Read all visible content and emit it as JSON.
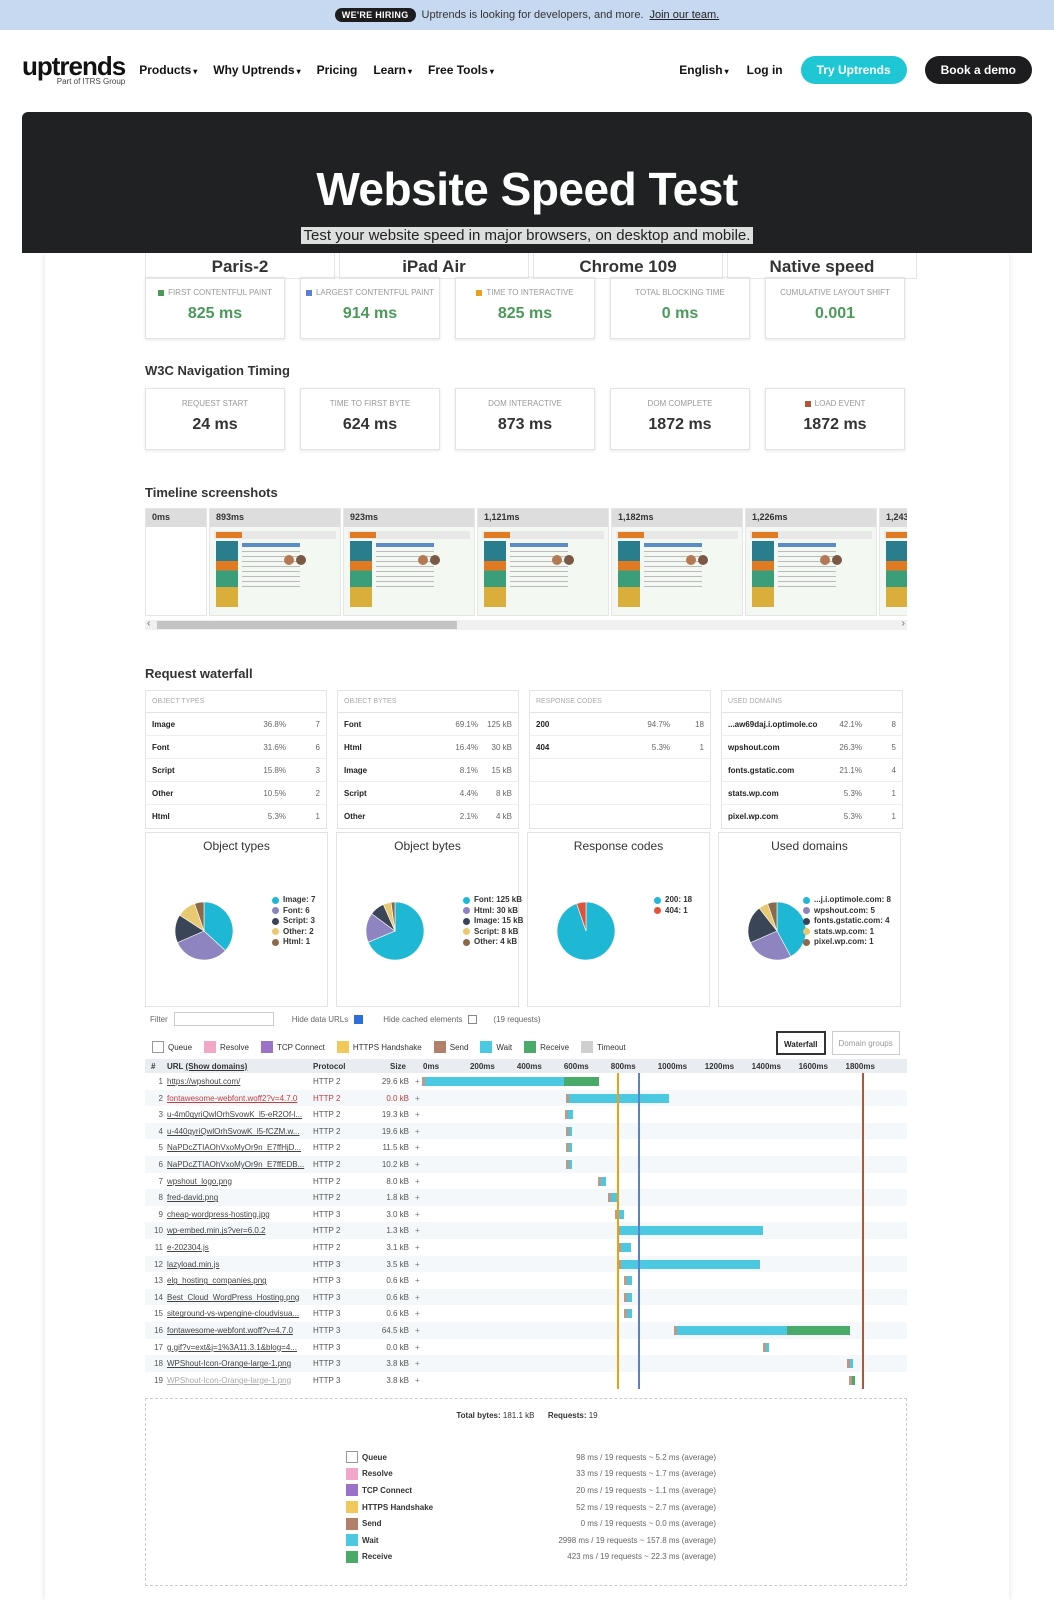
{
  "banner": {
    "badge": "WE'RE HIRING",
    "text": "Uptrends is looking for developers, and more.",
    "link": "Join our team."
  },
  "nav": {
    "logo": "uptrends",
    "logo_sub": "Part of ITRS Group",
    "items": [
      "Products",
      "Why Uptrends",
      "Pricing",
      "Learn",
      "Free Tools"
    ],
    "language": "English",
    "login": "Log in",
    "try": "Try Uptrends",
    "demo": "Book a demo"
  },
  "hero": {
    "title": "Website Speed Test",
    "subtitle": "Test your website speed in major browsers, on desktop and mobile."
  },
  "params": [
    "Paris-2",
    "iPad Air",
    "Chrome 109",
    "Native speed"
  ],
  "core_metrics": [
    {
      "label": "FIRST CONTENTFUL PAINT",
      "value": "825 ms",
      "color": "#4b9a5a"
    },
    {
      "label": "LARGEST CONTENTFUL PAINT",
      "value": "914 ms",
      "color": "#5b7fd6"
    },
    {
      "label": "TIME TO INTERACTIVE",
      "value": "825 ms",
      "color": "#e8a21a"
    },
    {
      "label": "TOTAL BLOCKING TIME",
      "value": "0 ms",
      "color": ""
    },
    {
      "label": "CUMULATIVE LAYOUT SHIFT",
      "value": "0.001",
      "color": ""
    }
  ],
  "w3c": {
    "title": "W3C Navigation Timing",
    "metrics": [
      {
        "label": "REQUEST START",
        "value": "24 ms"
      },
      {
        "label": "TIME TO FIRST BYTE",
        "value": "624 ms"
      },
      {
        "label": "DOM INTERACTIVE",
        "value": "873 ms"
      },
      {
        "label": "DOM COMPLETE",
        "value": "1872 ms"
      },
      {
        "label": "LOAD EVENT",
        "value": "1872 ms",
        "color": "#b3553a"
      }
    ]
  },
  "timeline": {
    "title": "Timeline screenshots",
    "frames": [
      "0ms",
      "893ms",
      "923ms",
      "1,121ms",
      "1,182ms",
      "1,226ms",
      "1,243"
    ]
  },
  "waterfall_title": "Request waterfall",
  "stat_tables": [
    {
      "header": "OBJECT TYPES",
      "rows": [
        [
          "Image",
          "36.8%",
          "7"
        ],
        [
          "Font",
          "31.6%",
          "6"
        ],
        [
          "Script",
          "15.8%",
          "3"
        ],
        [
          "Other",
          "10.5%",
          "2"
        ],
        [
          "Html",
          "5.3%",
          "1"
        ]
      ]
    },
    {
      "header": "OBJECT BYTES",
      "rows": [
        [
          "Font",
          "69.1%",
          "125 kB"
        ],
        [
          "Html",
          "16.4%",
          "30 kB"
        ],
        [
          "Image",
          "8.1%",
          "15 kB"
        ],
        [
          "Script",
          "4.4%",
          "8 kB"
        ],
        [
          "Other",
          "2.1%",
          "4 kB"
        ]
      ]
    },
    {
      "header": "RESPONSE CODES",
      "rows": [
        [
          "200",
          "94.7%",
          "18"
        ],
        [
          "404",
          "5.3%",
          "1"
        ],
        [
          "",
          "",
          ""
        ],
        [
          "",
          "",
          ""
        ],
        [
          "",
          "",
          ""
        ]
      ]
    },
    {
      "header": "USED DOMAINS",
      "rows": [
        [
          "...aw69daj.i.optimole.com",
          "42.1%",
          "8"
        ],
        [
          "wpshout.com",
          "26.3%",
          "5"
        ],
        [
          "fonts.gstatic.com",
          "21.1%",
          "4"
        ],
        [
          "stats.wp.com",
          "5.3%",
          "1"
        ],
        [
          "pixel.wp.com",
          "5.3%",
          "1"
        ]
      ]
    }
  ],
  "pies": [
    {
      "title": "Object types",
      "slices": [
        7,
        6,
        3,
        2,
        1
      ],
      "colors": [
        "#1fb8d4",
        "#8d84c0",
        "#3a4658",
        "#e8c870",
        "#8a6a4a"
      ],
      "legend": [
        "Image: 7",
        "Font: 6",
        "Script: 3",
        "Other: 2",
        "Html: 1"
      ]
    },
    {
      "title": "Object bytes",
      "slices": [
        125,
        30,
        15,
        8,
        4
      ],
      "colors": [
        "#1fb8d4",
        "#8d84c0",
        "#3a4658",
        "#e8c870",
        "#8a6a4a"
      ],
      "legend": [
        "Font: 125 kB",
        "Html: 30 kB",
        "Image: 15 kB",
        "Script: 8 kB",
        "Other: 4 kB"
      ]
    },
    {
      "title": "Response codes",
      "slices": [
        18,
        1
      ],
      "colors": [
        "#1fb8d4",
        "#e0533b"
      ],
      "legend": [
        "200: 18",
        "404: 1"
      ]
    },
    {
      "title": "Used domains",
      "slices": [
        8,
        5,
        4,
        1,
        1
      ],
      "colors": [
        "#1fb8d4",
        "#8d84c0",
        "#3a4658",
        "#e8c870",
        "#8a6a4a"
      ],
      "legend": [
        "...j.i.optimole.com: 8",
        "wpshout.com: 5",
        "fonts.gstatic.com: 4",
        "stats.wp.com: 1",
        "pixel.wp.com: 1"
      ]
    }
  ],
  "controls": {
    "filter": "Filter",
    "hide_data": "Hide data URLs",
    "hide_cached": "Hide cached elements",
    "requests": "(19 requests)",
    "waterfall": "Waterfall",
    "domain_groups": "Domain groups"
  },
  "phases": [
    {
      "name": "Queue",
      "color": "#ffffff"
    },
    {
      "name": "Resolve",
      "color": "#f2a6c8"
    },
    {
      "name": "TCP Connect",
      "color": "#9b72c9"
    },
    {
      "name": "HTTPS Handshake",
      "color": "#f0c95a"
    },
    {
      "name": "Send",
      "color": "#b0806a"
    },
    {
      "name": "Wait",
      "color": "#4cc8e0"
    },
    {
      "name": "Receive",
      "color": "#4aaa6a"
    },
    {
      "name": "Timeout",
      "color": "#cfcfcf"
    }
  ],
  "table_head": {
    "num": "#",
    "url": "URL",
    "show_domains": "(Show domains)",
    "protocol": "Protocol",
    "size": "Size",
    "ticks": [
      "0ms",
      "200ms",
      "400ms",
      "600ms",
      "800ms",
      "1000ms",
      "1200ms",
      "1400ms",
      "1600ms",
      "1800ms"
    ]
  },
  "requests": [
    {
      "n": "1",
      "url": "https://wpshout.com/",
      "proto": "HTTP 2",
      "size": "29.6 kB",
      "err": false,
      "start": 10,
      "wait": 590,
      "recv": 150
    },
    {
      "n": "2",
      "url": "fontawesome-webfont.woff2?v=4.7.0",
      "proto": "HTTP 2",
      "size": "0.0 kB",
      "err": true,
      "start": 620,
      "wait": 430,
      "recv": 0
    },
    {
      "n": "3",
      "url": "u-4m0qyriQwlOrhSvowK_l5-eR2Of-l...",
      "proto": "HTTP 2",
      "size": "19.3 kB",
      "err": false,
      "start": 618,
      "wait": 20,
      "recv": 0
    },
    {
      "n": "4",
      "url": "u-440qyriQwlOrhSvowK_l5-fCZM.w...",
      "proto": "HTTP 2",
      "size": "19.6 kB",
      "err": false,
      "start": 620,
      "wait": 15,
      "recv": 0
    },
    {
      "n": "5",
      "url": "NaPDcZTIAOhVxoMyOr9n_E7ffHjD...",
      "proto": "HTTP 2",
      "size": "11.5 kB",
      "err": false,
      "start": 620,
      "wait": 15,
      "recv": 0
    },
    {
      "n": "6",
      "url": "NaPDcZTIAOhVxoMyOr9n_E7ffEDB...",
      "proto": "HTTP 2",
      "size": "10.2 kB",
      "err": false,
      "start": 620,
      "wait": 15,
      "recv": 0
    },
    {
      "n": "7",
      "url": "wpshout_logo.png",
      "proto": "HTTP 2",
      "size": "8.0 kB",
      "err": false,
      "start": 760,
      "wait": 20,
      "recv": 0
    },
    {
      "n": "8",
      "url": "fred-david.png",
      "proto": "HTTP 2",
      "size": "1.8 kB",
      "err": false,
      "start": 800,
      "wait": 25,
      "recv": 0
    },
    {
      "n": "9",
      "url": "cheap-wordpress-hosting.jpg",
      "proto": "HTTP 3",
      "size": "3.0 kB",
      "err": false,
      "start": 830,
      "wait": 25,
      "recv": 0
    },
    {
      "n": "10",
      "url": "wp-embed.min.js?ver=6.0.2",
      "proto": "HTTP 2",
      "size": "1.3 kB",
      "err": false,
      "start": 840,
      "wait": 610,
      "recv": 0
    },
    {
      "n": "11",
      "url": "e-202304.js",
      "proto": "HTTP 2",
      "size": "3.1 kB",
      "err": false,
      "start": 845,
      "wait": 40,
      "recv": 0
    },
    {
      "n": "12",
      "url": "lazyload.min.js",
      "proto": "HTTP 3",
      "size": "3.5 kB",
      "err": false,
      "start": 845,
      "wait": 590,
      "recv": 0
    },
    {
      "n": "13",
      "url": "elg_hosting_companies.png",
      "proto": "HTTP 3",
      "size": "0.6 kB",
      "err": false,
      "start": 870,
      "wait": 20,
      "recv": 0
    },
    {
      "n": "14",
      "url": "Best_Cloud_WordPress_Hosting.png",
      "proto": "HTTP 3",
      "size": "0.6 kB",
      "err": false,
      "start": 870,
      "wait": 20,
      "recv": 0
    },
    {
      "n": "15",
      "url": "siteground-vs-wpengine-cloudvisua...",
      "proto": "HTTP 3",
      "size": "0.6 kB",
      "err": false,
      "start": 870,
      "wait": 20,
      "recv": 0
    },
    {
      "n": "16",
      "url": "fontawesome-webfont.woff?v=4.7.0",
      "proto": "HTTP 3",
      "size": "64.5 kB",
      "err": false,
      "start": 1080,
      "wait": 470,
      "recv": 270
    },
    {
      "n": "17",
      "url": "g.gif?v=ext&j=1%3A11.3.1&blog=4...",
      "proto": "HTTP 3",
      "size": "0.0 kB",
      "err": false,
      "start": 1460,
      "wait": 15,
      "recv": 0
    },
    {
      "n": "18",
      "url": "WPShout-Icon-Orange-large-1.png",
      "proto": "HTTP 3",
      "size": "3.8 kB",
      "err": false,
      "start": 1820,
      "wait": 8,
      "recv": 0
    },
    {
      "n": "19",
      "url": "WPShout-Icon-Orange-large-1.png",
      "proto": "HTTP 3",
      "size": "3.8 kB",
      "err": false,
      "dim": true,
      "start": 1828,
      "wait": 0,
      "recv": 10
    }
  ],
  "markers": [
    {
      "ms": 825,
      "color": "#e8a21a"
    },
    {
      "ms": 914,
      "color": "#5b7fd6"
    },
    {
      "ms": 1872,
      "color": "#b3553a"
    }
  ],
  "summary": {
    "total_bytes_label": "Total bytes:",
    "total_bytes": "181.1 kB",
    "requests_label": "Requests:",
    "requests": "19",
    "rows": [
      "98 ms / 19 requests ~ 5.2 ms (average)",
      "33 ms / 19 requests ~ 1.7 ms (average)",
      "20 ms / 19 requests ~ 1.1 ms (average)",
      "52 ms / 19 requests ~ 2.7 ms (average)",
      "0 ms / 19 requests ~ 0.0 ms (average)",
      "2998 ms / 19 requests ~ 157.8 ms (average)",
      "423 ms / 19 requests ~ 22.3 ms (average)"
    ]
  }
}
